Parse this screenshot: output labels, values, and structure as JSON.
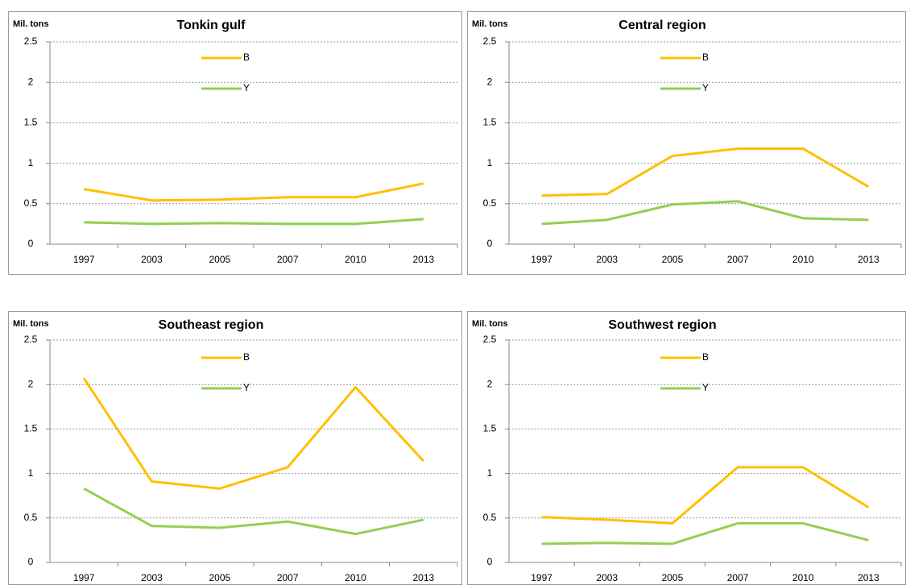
{
  "chart_data": [
    {
      "type": "line",
      "title": "Tonkin gulf",
      "y_label": "Mil. tons",
      "categories": [
        "1997",
        "2003",
        "2005",
        "2007",
        "2010",
        "2013"
      ],
      "series": [
        {
          "name": "B",
          "color": "#ffc000",
          "values": [
            0.68,
            0.54,
            0.55,
            0.58,
            0.58,
            0.75
          ]
        },
        {
          "name": "Y",
          "color": "#92d050",
          "values": [
            0.27,
            0.25,
            0.26,
            0.25,
            0.25,
            0.31
          ]
        }
      ],
      "ylim": [
        0,
        2.5
      ],
      "yticks": [
        0,
        0.5,
        1,
        1.5,
        2,
        2.5
      ],
      "grid": true
    },
    {
      "type": "line",
      "title": "Central region",
      "y_label": "Mil. tons",
      "categories": [
        "1997",
        "2003",
        "2005",
        "2007",
        "2010",
        "2013"
      ],
      "series": [
        {
          "name": "B",
          "color": "#ffc000",
          "values": [
            0.6,
            0.62,
            1.09,
            1.18,
            1.18,
            0.71
          ]
        },
        {
          "name": "Y",
          "color": "#92d050",
          "values": [
            0.25,
            0.3,
            0.49,
            0.53,
            0.32,
            0.3
          ]
        }
      ],
      "ylim": [
        0,
        2.5
      ],
      "yticks": [
        0,
        0.5,
        1,
        1.5,
        2,
        2.5
      ],
      "grid": true
    },
    {
      "type": "line",
      "title": "Southeast region",
      "y_label": "Mil. tons",
      "categories": [
        "1997",
        "2003",
        "2005",
        "2007",
        "2010",
        "2013"
      ],
      "series": [
        {
          "name": "B",
          "color": "#ffc000",
          "values": [
            2.07,
            0.91,
            0.83,
            1.07,
            1.97,
            1.14
          ]
        },
        {
          "name": "Y",
          "color": "#92d050",
          "values": [
            0.83,
            0.41,
            0.39,
            0.46,
            0.32,
            0.48
          ]
        }
      ],
      "ylim": [
        0,
        2.5
      ],
      "yticks": [
        0,
        0.5,
        1,
        1.5,
        2,
        2.5
      ],
      "grid": true
    },
    {
      "type": "line",
      "title": "Southwest region",
      "y_label": "Mil. tons",
      "categories": [
        "1997",
        "2003",
        "2005",
        "2007",
        "2010",
        "2013"
      ],
      "series": [
        {
          "name": "B",
          "color": "#ffc000",
          "values": [
            0.51,
            0.48,
            0.44,
            1.07,
            1.07,
            0.62
          ]
        },
        {
          "name": "Y",
          "color": "#92d050",
          "values": [
            0.21,
            0.22,
            0.21,
            0.44,
            0.44,
            0.25
          ]
        }
      ],
      "ylim": [
        0,
        2.5
      ],
      "yticks": [
        0,
        0.5,
        1,
        1.5,
        2,
        2.5
      ],
      "grid": true
    }
  ]
}
